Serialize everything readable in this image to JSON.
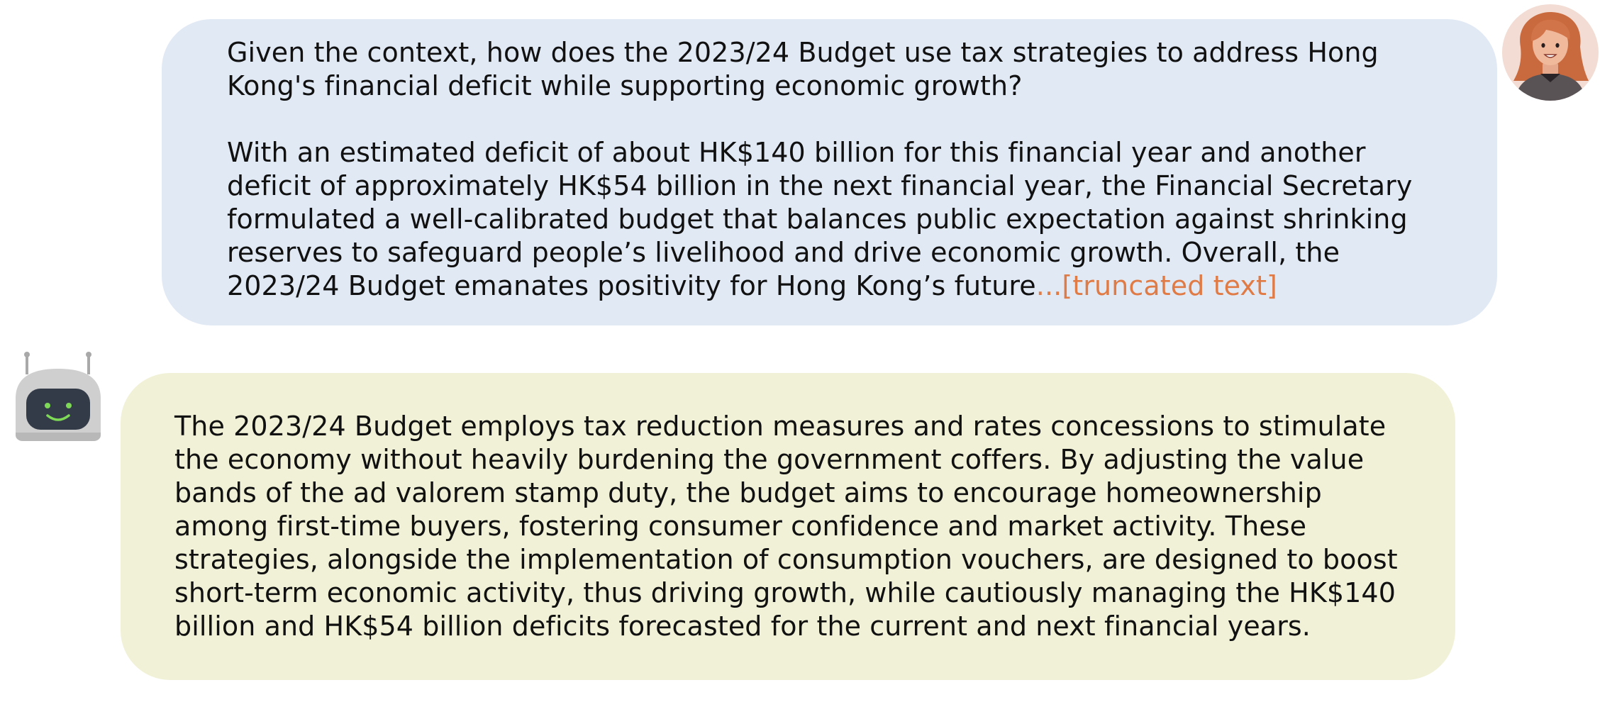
{
  "conversation": {
    "user_message": {
      "question": "Given the context, how does the 2023/24 Budget use tax strategies to address Hong Kong's financial deficit while supporting economic growth?",
      "context": "With an estimated deficit of about HK$140 billion for this financial year and another deficit of approximately HK$54 billion in the next financial year, the Financial Secretary formulated a well-calibrated budget that balances public expectation against shrinking reserves to safeguard people’s livelihood and drive economic growth. Overall, the 2023/24 Budget emanates positivity for Hong Kong’s future",
      "truncation_marker": "...[truncated text]",
      "bubble_color": "#e1e9f5",
      "avatar_icon": "woman-user-avatar-icon"
    },
    "assistant_message": {
      "text": "The 2023/24 Budget employs tax reduction measures and rates concessions to stimulate the economy without heavily burdening the government coffers. By adjusting the value bands of the ad valorem stamp duty, the budget aims to encourage homeownership among first-time buyers, fostering consumer confidence and market activity. These strategies, alongside the implementation of consumption vouchers, are designed to boost short-term economic activity, thus driving growth, while cautiously managing the HK$140 billion and HK$54 billion deficits forecasted for the current and next financial years.",
      "bubble_color": "#f1f1d7",
      "avatar_icon": "robot-assistant-avatar-icon"
    },
    "truncation_color": "#e07b45"
  }
}
